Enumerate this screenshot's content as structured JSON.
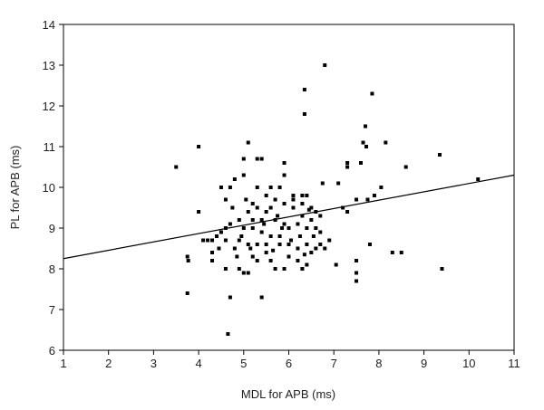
{
  "chart_data": {
    "type": "scatter",
    "title": "",
    "xlabel": "MDL for APB (ms)",
    "ylabel": "PL for APB (ms)",
    "xlim": [
      1,
      11
    ],
    "ylim": [
      6,
      14
    ],
    "xticks": [
      "1",
      "2",
      "3",
      "4",
      "5",
      "6",
      "7",
      "8",
      "9",
      "10",
      "11"
    ],
    "yticks": [
      "6",
      "7",
      "8",
      "9",
      "10",
      "11",
      "12",
      "13",
      "14"
    ],
    "grid": false,
    "regression_line": {
      "x": [
        1,
        11
      ],
      "y": [
        8.25,
        10.3
      ]
    },
    "points": [
      [
        3.5,
        10.5
      ],
      [
        4.0,
        11.0
      ],
      [
        3.75,
        8.3
      ],
      [
        3.77,
        8.2
      ],
      [
        3.75,
        7.4
      ],
      [
        4.0,
        9.4
      ],
      [
        4.65,
        6.4
      ],
      [
        4.7,
        7.3
      ],
      [
        5.4,
        7.3
      ],
      [
        5.1,
        11.1
      ],
      [
        6.35,
        12.4
      ],
      [
        6.35,
        11.8
      ],
      [
        6.8,
        13.0
      ],
      [
        7.85,
        12.3
      ],
      [
        7.7,
        11.5
      ],
      [
        7.65,
        11.1
      ],
      [
        7.72,
        11.0
      ],
      [
        8.15,
        11.1
      ],
      [
        7.3,
        10.6
      ],
      [
        7.3,
        10.5
      ],
      [
        7.6,
        10.6
      ],
      [
        8.6,
        10.5
      ],
      [
        9.35,
        10.8
      ],
      [
        10.2,
        10.2
      ],
      [
        9.4,
        8.0
      ],
      [
        8.3,
        8.4
      ],
      [
        8.5,
        8.4
      ],
      [
        7.8,
        8.6
      ],
      [
        7.5,
        7.9
      ],
      [
        7.5,
        7.7
      ],
      [
        7.5,
        8.2
      ],
      [
        7.05,
        8.1
      ],
      [
        7.9,
        9.8
      ],
      [
        8.05,
        10.0
      ],
      [
        7.75,
        9.7
      ],
      [
        7.5,
        9.7
      ],
      [
        7.3,
        9.4
      ],
      [
        7.1,
        10.1
      ],
      [
        6.75,
        10.1
      ],
      [
        6.9,
        8.7
      ],
      [
        6.8,
        8.5
      ],
      [
        7.2,
        9.5
      ],
      [
        4.5,
        10.0
      ],
      [
        4.7,
        10.0
      ],
      [
        4.8,
        10.2
      ],
      [
        4.6,
        9.7
      ],
      [
        4.75,
        9.5
      ],
      [
        5.0,
        10.3
      ],
      [
        5.0,
        10.7
      ],
      [
        5.3,
        10.7
      ],
      [
        5.4,
        10.7
      ],
      [
        5.9,
        10.6
      ],
      [
        5.9,
        10.3
      ],
      [
        5.8,
        10.0
      ],
      [
        5.6,
        10.0
      ],
      [
        5.5,
        9.8
      ],
      [
        5.3,
        9.5
      ],
      [
        5.2,
        9.6
      ],
      [
        5.1,
        9.4
      ],
      [
        5.5,
        9.4
      ],
      [
        5.2,
        9.2
      ],
      [
        5.4,
        9.2
      ],
      [
        5.7,
        9.2
      ],
      [
        5.9,
        9.1
      ],
      [
        6.1,
        9.8
      ],
      [
        6.1,
        9.7
      ],
      [
        6.3,
        9.8
      ],
      [
        6.4,
        9.8
      ],
      [
        6.5,
        9.5
      ],
      [
        6.6,
        9.4
      ],
      [
        6.3,
        9.3
      ],
      [
        6.5,
        9.2
      ],
      [
        6.7,
        9.3
      ],
      [
        6.6,
        9.0
      ],
      [
        6.4,
        9.0
      ],
      [
        6.2,
        9.1
      ],
      [
        6.0,
        9.0
      ],
      [
        5.8,
        8.8
      ],
      [
        5.6,
        8.8
      ],
      [
        5.5,
        8.6
      ],
      [
        5.3,
        8.6
      ],
      [
        5.1,
        8.6
      ],
      [
        4.9,
        8.7
      ],
      [
        4.8,
        8.5
      ],
      [
        4.6,
        8.7
      ],
      [
        4.5,
        8.9
      ],
      [
        4.4,
        8.8
      ],
      [
        4.3,
        8.7
      ],
      [
        4.2,
        8.7
      ],
      [
        4.1,
        8.7
      ],
      [
        4.3,
        8.4
      ],
      [
        4.3,
        8.2
      ],
      [
        4.6,
        8.0
      ],
      [
        4.9,
        8.0
      ],
      [
        5.0,
        7.9
      ],
      [
        5.1,
        7.9
      ],
      [
        5.2,
        8.3
      ],
      [
        5.3,
        8.2
      ],
      [
        5.5,
        8.4
      ],
      [
        5.6,
        8.2
      ],
      [
        5.7,
        8.0
      ],
      [
        5.9,
        8.0
      ],
      [
        6.0,
        8.3
      ],
      [
        6.2,
        8.2
      ],
      [
        6.3,
        8.0
      ],
      [
        6.4,
        8.1
      ],
      [
        6.5,
        8.4
      ],
      [
        6.6,
        8.5
      ],
      [
        6.7,
        8.6
      ],
      [
        6.4,
        8.6
      ],
      [
        6.2,
        8.5
      ],
      [
        6.0,
        8.6
      ],
      [
        5.8,
        8.6
      ],
      [
        5.4,
        8.9
      ],
      [
        5.2,
        9.0
      ],
      [
        5.0,
        9.0
      ],
      [
        4.9,
        9.2
      ],
      [
        4.7,
        9.1
      ],
      [
        4.6,
        9.0
      ],
      [
        5.6,
        9.5
      ],
      [
        5.7,
        9.7
      ],
      [
        5.9,
        9.6
      ],
      [
        6.1,
        9.5
      ],
      [
        6.3,
        9.6
      ],
      [
        5.3,
        10.0
      ],
      [
        5.45,
        9.1
      ],
      [
        5.75,
        9.3
      ],
      [
        6.25,
        8.8
      ],
      [
        6.55,
        8.8
      ],
      [
        6.7,
        8.9
      ],
      [
        4.45,
        8.5
      ],
      [
        4.85,
        8.3
      ],
      [
        5.15,
        8.5
      ],
      [
        5.65,
        8.45
      ],
      [
        6.05,
        8.7
      ],
      [
        6.45,
        9.45
      ],
      [
        5.05,
        9.7
      ],
      [
        4.95,
        8.8
      ],
      [
        5.85,
        9.0
      ],
      [
        6.35,
        8.35
      ]
    ]
  }
}
